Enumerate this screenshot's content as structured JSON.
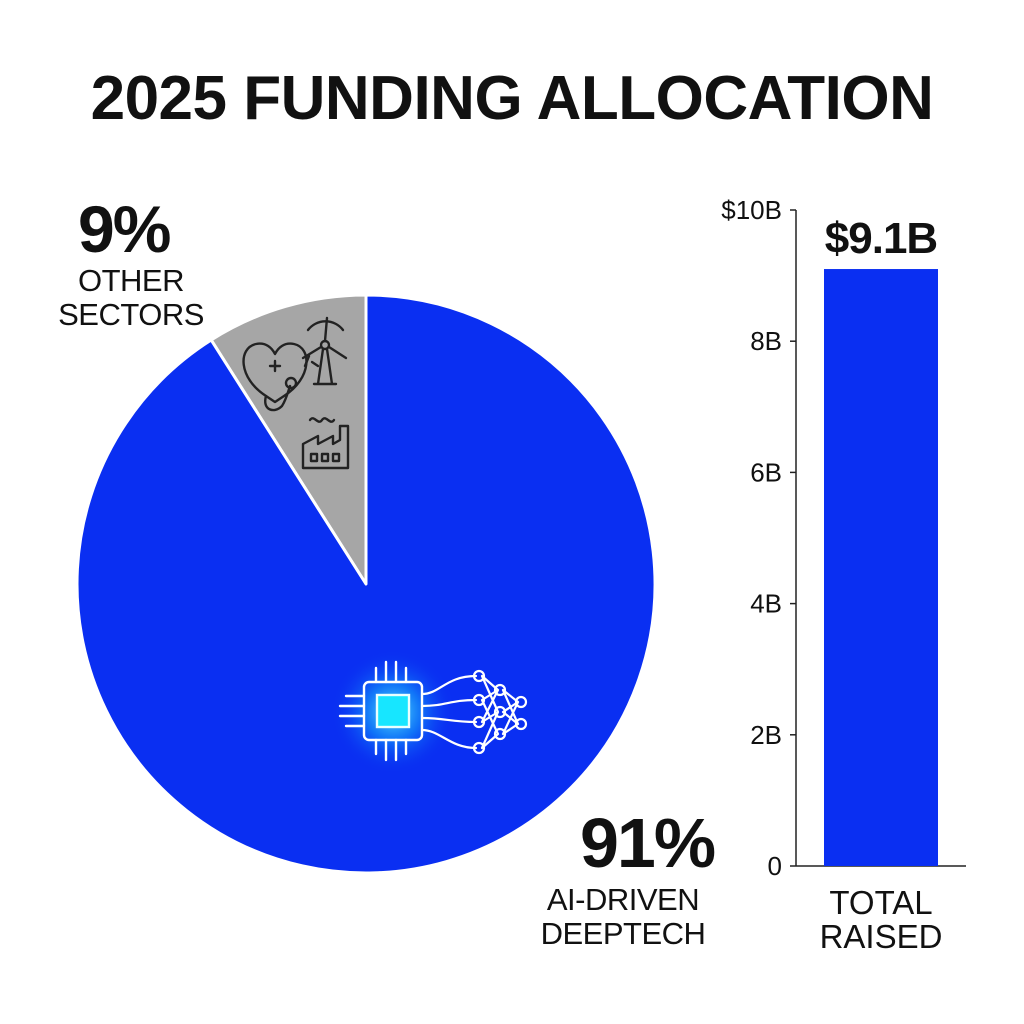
{
  "title": "2025 FUNDING ALLOCATION",
  "colors": {
    "primary": "#0a2ff2",
    "secondary": "#a6a6a6",
    "glow": "#2af0ff"
  },
  "icons": {
    "other_sectors": [
      "heart-health-icon",
      "wind-turbine-icon",
      "factory-icon"
    ],
    "ai_deeptech": [
      "chip-icon",
      "neural-network-icon"
    ]
  },
  "chart_data": [
    {
      "type": "pie",
      "slices": [
        {
          "label": "OTHER SECTORS",
          "value": 9,
          "display": "9%",
          "color": "#a6a6a6"
        },
        {
          "label": "AI-DRIVEN DEEPTECH",
          "value": 91,
          "display": "91%",
          "color": "#0a2ff2"
        }
      ]
    },
    {
      "type": "bar",
      "categories": [
        "TOTAL RAISED"
      ],
      "values": [
        9.1
      ],
      "value_label": "$9.1B",
      "ylim": [
        0,
        10
      ],
      "yticks": [
        0,
        2,
        4,
        6,
        8,
        10
      ],
      "ytick_labels": [
        "0",
        "2B",
        "4B",
        "6B",
        "8B",
        "$10B"
      ],
      "color": "#0a2ff2"
    }
  ]
}
